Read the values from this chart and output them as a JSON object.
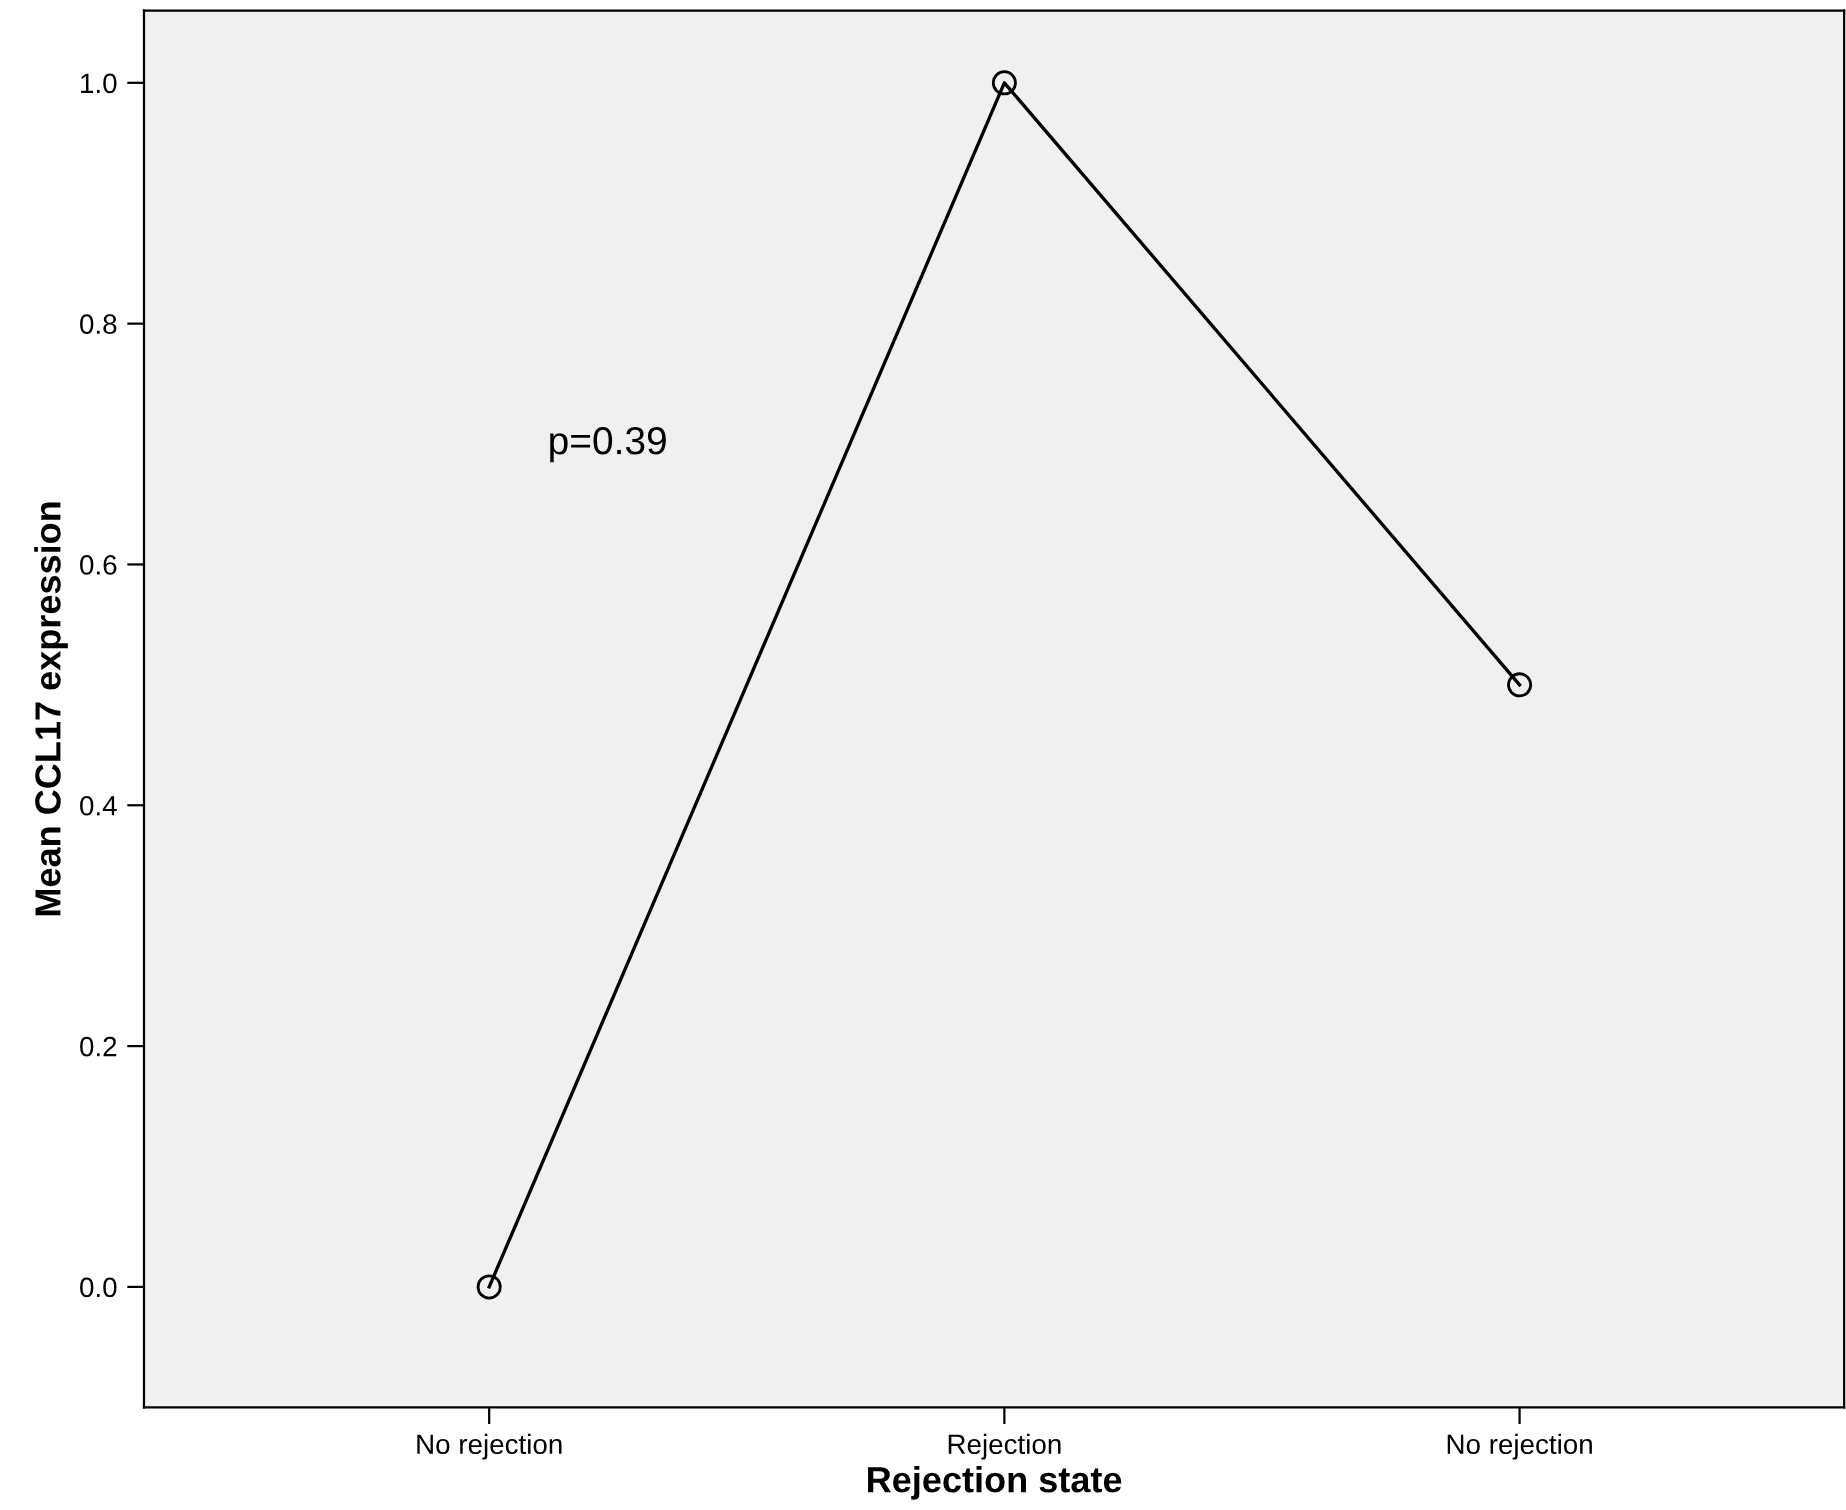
{
  "chart_data": {
    "type": "line",
    "xlabel": "Rejection state",
    "ylabel": "Mean CCL17 expression",
    "categories": [
      "No rejection",
      "Rejection",
      "No rejection"
    ],
    "series": [
      {
        "color": "#000000",
        "values": [
          0.0,
          1.0,
          0.5
        ]
      }
    ],
    "ylim": [
      -0.1,
      1.06
    ],
    "yticks": [
      {
        "value": 0,
        "label": "0.0"
      },
      0.2,
      0.4,
      0.6,
      0.8,
      {
        "value": 1,
        "label": "1.0"
      }
    ],
    "annotations": [
      "p=0.39"
    ],
    "marker": "circle",
    "line_style": "solid",
    "grid": false,
    "legend": false
  }
}
